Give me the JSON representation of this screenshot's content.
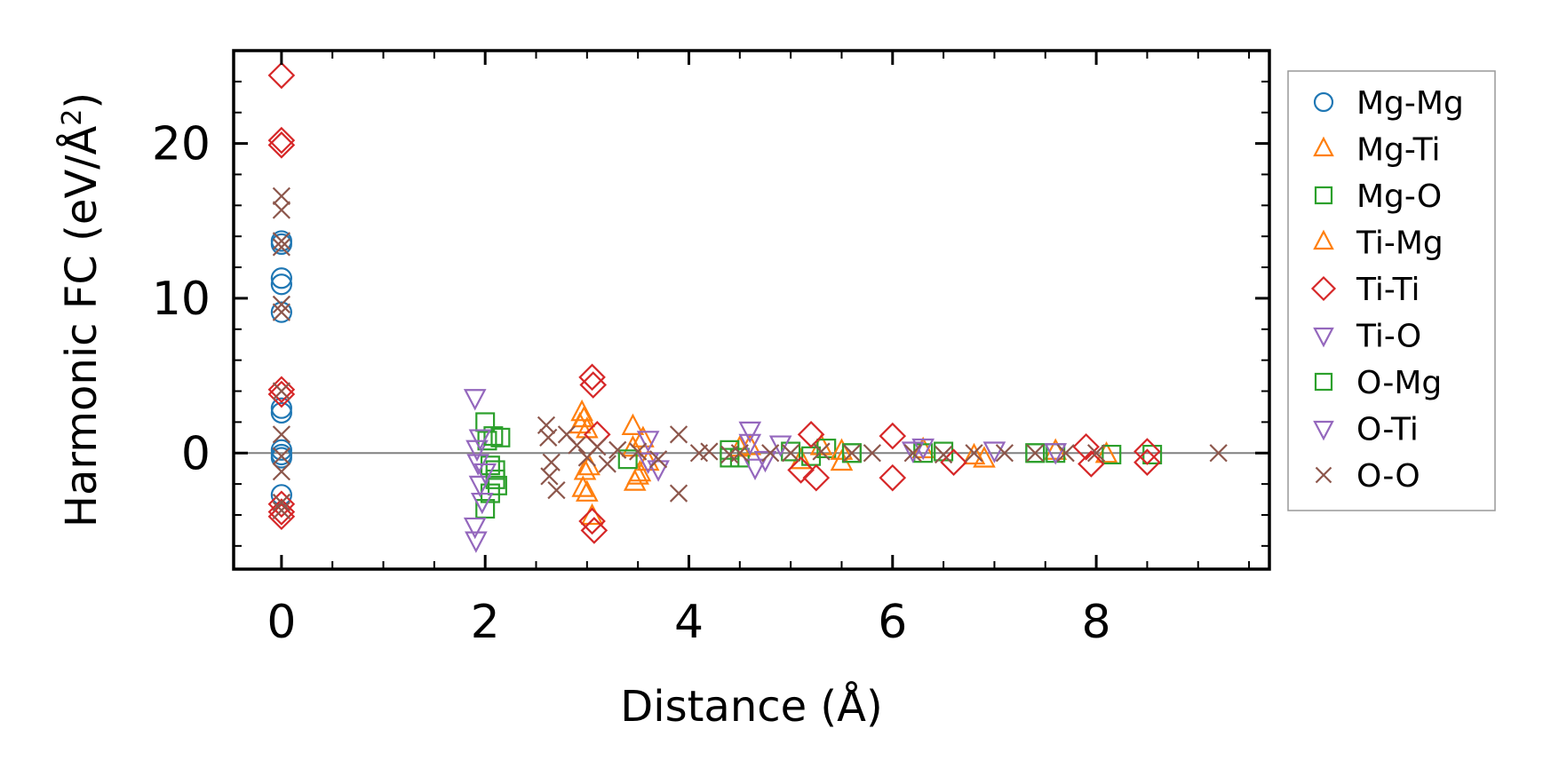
{
  "chart_data": {
    "type": "scatter",
    "title": "",
    "xlabel": "Distance (Å)",
    "ylabel": "Harmonic FC (eV/Å²)",
    "ylabel_parts": {
      "main": "Harmonic FC (eV/Å",
      "sup": "2",
      "close": ")"
    },
    "xlim": [
      -0.47,
      9.7
    ],
    "ylim": [
      -7.5,
      26.0
    ],
    "xticks": [
      0,
      2,
      4,
      6,
      8
    ],
    "xtick_labels": [
      "0",
      "2",
      "4",
      "6",
      "8"
    ],
    "yticks": [
      0,
      10,
      20
    ],
    "ytick_labels": [
      "0",
      "10",
      "20"
    ],
    "grid": false,
    "hline": 0,
    "legend": {
      "position": "outside-right"
    },
    "series": [
      {
        "name": "Mg-Mg",
        "marker": "circle",
        "color": "#1f77b4",
        "points": [
          [
            0,
            13.7
          ],
          [
            0,
            13.5
          ],
          [
            0,
            11.3
          ],
          [
            0,
            10.9
          ],
          [
            0,
            9.1
          ],
          [
            0,
            2.9
          ],
          [
            0,
            2.6
          ],
          [
            0,
            0.2
          ],
          [
            0,
            -0.1
          ],
          [
            0,
            -0.3
          ],
          [
            0,
            -2.7
          ]
        ]
      },
      {
        "name": "Mg-Ti",
        "marker": "triangle-up",
        "color": "#ff7f0e",
        "points": [
          [
            2.95,
            2.6
          ],
          [
            2.97,
            2.2
          ],
          [
            2.93,
            1.8
          ],
          [
            2.98,
            -1.2
          ],
          [
            2.96,
            -2.3
          ],
          [
            3.0,
            -2.6
          ],
          [
            3.05,
            -4.1
          ],
          [
            3.45,
            1.7
          ],
          [
            3.47,
            -1.9
          ],
          [
            3.5,
            -1.5
          ],
          [
            3.55,
            0.9
          ],
          [
            3.6,
            -0.6
          ],
          [
            4.5,
            0.3
          ],
          [
            5.1,
            -0.5
          ],
          [
            5.3,
            0.4
          ],
          [
            5.5,
            -0.6
          ],
          [
            6.3,
            0.2
          ],
          [
            6.9,
            -0.4
          ],
          [
            7.6,
            0.1
          ],
          [
            8.1,
            -0.1
          ]
        ]
      },
      {
        "name": "Mg-O",
        "marker": "square",
        "color": "#2ca02c",
        "points": [
          [
            2.0,
            2.0
          ],
          [
            2.02,
            0.8
          ],
          [
            2.05,
            -0.8
          ],
          [
            2.1,
            -1.7
          ],
          [
            2.15,
            1.0
          ],
          [
            2.12,
            -2.1
          ],
          [
            2.0,
            -3.6
          ],
          [
            2.05,
            -2.6
          ],
          [
            4.4,
            0.2
          ],
          [
            4.5,
            -0.3
          ],
          [
            5.0,
            0.1
          ],
          [
            5.2,
            -0.2
          ],
          [
            5.35,
            0.3
          ],
          [
            5.6,
            0.0
          ],
          [
            6.3,
            0.0
          ],
          [
            6.5,
            0.1
          ],
          [
            7.4,
            0.0
          ],
          [
            7.6,
            0.0
          ],
          [
            8.15,
            -0.1
          ],
          [
            8.55,
            -0.1
          ]
        ]
      },
      {
        "name": "Ti-Mg",
        "marker": "triangle-up",
        "color": "#ff7f0e",
        "points": [
          [
            3.0,
            1.5
          ],
          [
            3.02,
            -0.9
          ],
          [
            3.45,
            0.3
          ],
          [
            3.52,
            -1.3
          ],
          [
            4.6,
            0.4
          ],
          [
            5.5,
            0.1
          ],
          [
            6.8,
            -0.2
          ]
        ]
      },
      {
        "name": "Ti-Ti",
        "marker": "diamond",
        "color": "#d62728",
        "points": [
          [
            0,
            24.4
          ],
          [
            0,
            20.2
          ],
          [
            0,
            19.9
          ],
          [
            0,
            4.1
          ],
          [
            0,
            3.8
          ],
          [
            0,
            -3.3
          ],
          [
            0,
            -3.8
          ],
          [
            0,
            -4.1
          ],
          [
            3.05,
            4.9
          ],
          [
            3.06,
            4.4
          ],
          [
            3.05,
            -4.4
          ],
          [
            3.07,
            -5.0
          ],
          [
            3.1,
            1.2
          ],
          [
            5.1,
            -1.1
          ],
          [
            5.2,
            1.2
          ],
          [
            5.25,
            -1.6
          ],
          [
            6.0,
            1.1
          ],
          [
            6.0,
            -1.6
          ],
          [
            6.6,
            -0.6
          ],
          [
            7.9,
            0.4
          ],
          [
            7.95,
            -0.7
          ],
          [
            8.5,
            -0.6
          ],
          [
            8.5,
            0.1
          ]
        ]
      },
      {
        "name": "Ti-O",
        "marker": "triangle-down",
        "color": "#9467bd",
        "points": [
          [
            1.9,
            3.6
          ],
          [
            1.92,
            0.3
          ],
          [
            1.93,
            -0.6
          ],
          [
            1.95,
            -2.0
          ],
          [
            1.97,
            -3.1
          ],
          [
            1.9,
            -4.7
          ],
          [
            1.91,
            -5.6
          ],
          [
            3.6,
            0.9
          ],
          [
            3.7,
            -1.0
          ],
          [
            4.6,
            1.5
          ],
          [
            4.65,
            -0.9
          ],
          [
            4.9,
            0.6
          ],
          [
            6.3,
            0.4
          ],
          [
            7.0,
            0.2
          ]
        ]
      },
      {
        "name": "O-Mg",
        "marker": "square",
        "color": "#2ca02c",
        "points": [
          [
            2.08,
            1.1
          ],
          [
            2.1,
            -1.1
          ],
          [
            3.4,
            -0.4
          ],
          [
            4.4,
            -0.3
          ],
          [
            5.6,
            0.0
          ],
          [
            7.4,
            0.0
          ]
        ]
      },
      {
        "name": "O-Ti",
        "marker": "triangle-down",
        "color": "#9467bd",
        "points": [
          [
            1.95,
            1.0
          ],
          [
            2.0,
            -1.2
          ],
          [
            3.6,
            -0.5
          ],
          [
            4.6,
            0.7
          ],
          [
            4.75,
            -0.4
          ],
          [
            6.2,
            0.2
          ],
          [
            7.6,
            0.1
          ]
        ]
      },
      {
        "name": "O-O",
        "marker": "x",
        "color": "#8c564b",
        "points": [
          [
            0,
            16.6
          ],
          [
            0,
            15.7
          ],
          [
            0,
            13.7
          ],
          [
            0,
            13.3
          ],
          [
            0,
            9.6
          ],
          [
            0,
            9.1
          ],
          [
            0,
            4.0
          ],
          [
            0,
            1.2
          ],
          [
            0,
            -0.2
          ],
          [
            0,
            -1.2
          ],
          [
            0,
            -3.2
          ],
          [
            0,
            -3.7
          ],
          [
            2.6,
            1.8
          ],
          [
            2.62,
            1.0
          ],
          [
            2.65,
            -0.6
          ],
          [
            2.63,
            -1.5
          ],
          [
            2.7,
            -2.4
          ],
          [
            2.8,
            1.2
          ],
          [
            2.9,
            0.5
          ],
          [
            3.0,
            -0.3
          ],
          [
            3.1,
            0.4
          ],
          [
            3.2,
            -0.7
          ],
          [
            3.3,
            0.2
          ],
          [
            3.5,
            0.1
          ],
          [
            3.7,
            -0.4
          ],
          [
            3.9,
            1.2
          ],
          [
            3.9,
            -2.6
          ],
          [
            4.1,
            0.0
          ],
          [
            4.2,
            0.1
          ],
          [
            4.4,
            -0.1
          ],
          [
            4.5,
            0.0
          ],
          [
            4.8,
            0.0
          ],
          [
            5.0,
            0.0
          ],
          [
            5.3,
            0.1
          ],
          [
            5.6,
            0.0
          ],
          [
            5.8,
            0.0
          ],
          [
            6.2,
            0.0
          ],
          [
            6.5,
            -0.1
          ],
          [
            6.8,
            0.0
          ],
          [
            7.1,
            0.0
          ],
          [
            7.4,
            0.0
          ],
          [
            7.7,
            0.0
          ],
          [
            8.0,
            0.0
          ],
          [
            9.2,
            0.0
          ]
        ]
      }
    ]
  }
}
